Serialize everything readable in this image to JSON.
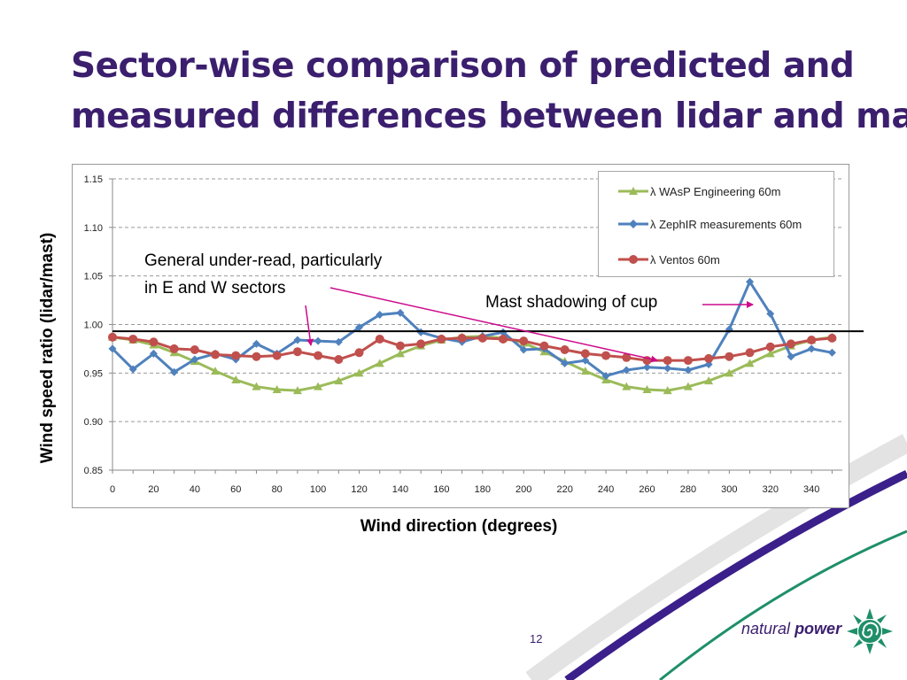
{
  "slide": {
    "title_line1": "Sector-wise comparison of predicted and",
    "title_line2": "measured differences between lidar and mast",
    "page_number": "12"
  },
  "logo": {
    "word1": "natural",
    "word2": "power",
    "icon": "spiral-sun-icon"
  },
  "annotations": {
    "under_read_line1": "General under-read, particularly",
    "under_read_line2": "in E and W sectors",
    "mast_shadowing": "Mast shadowing of cup"
  },
  "colors": {
    "title": "#3b1f6e",
    "wasp": "#9bbb59",
    "zephir": "#4f81bd",
    "ventos": "#c0504d",
    "arrow": "#cc0a8a",
    "reference_line": "#000000"
  },
  "chart_data": {
    "type": "line",
    "xlabel": "Wind direction (degrees)",
    "ylabel": "Wind speed ratio (lidar/mast)",
    "xlim": [
      0,
      355
    ],
    "ylim": [
      0.85,
      1.15
    ],
    "x_ticks": [
      "0",
      "20",
      "40",
      "60",
      "80",
      "100",
      "120",
      "140",
      "160",
      "180",
      "200",
      "220",
      "240",
      "260",
      "280",
      "300",
      "320",
      "340"
    ],
    "y_ticks": [
      "0.85",
      "0.90",
      "0.95",
      "1.00",
      "1.05",
      "1.10",
      "1.15"
    ],
    "grid": "horizontal dashed",
    "legend_position": "top-right",
    "reference_line_y": 0.993,
    "x": [
      0,
      10,
      20,
      30,
      40,
      50,
      60,
      70,
      80,
      90,
      100,
      110,
      120,
      130,
      140,
      150,
      160,
      170,
      180,
      190,
      200,
      210,
      220,
      230,
      240,
      250,
      260,
      270,
      280,
      290,
      300,
      310,
      320,
      330,
      340,
      350
    ],
    "series": [
      {
        "name": "λ WAsP Engineering 60m",
        "color": "#9bbb59",
        "marker": "triangle",
        "values": [
          0.987,
          0.984,
          0.979,
          0.971,
          0.962,
          0.952,
          0.943,
          0.936,
          0.933,
          0.932,
          0.936,
          0.942,
          0.95,
          0.96,
          0.97,
          0.978,
          0.984,
          0.987,
          0.988,
          0.986,
          0.981,
          0.972,
          0.962,
          0.952,
          0.943,
          0.936,
          0.933,
          0.932,
          0.936,
          0.942,
          0.95,
          0.96,
          0.97,
          0.978,
          0.984,
          0.987
        ]
      },
      {
        "name": "λ ZephIR measurements 60m",
        "color": "#4f81bd",
        "marker": "diamond",
        "values": [
          0.975,
          0.954,
          0.97,
          0.951,
          0.964,
          0.97,
          0.964,
          0.98,
          0.97,
          0.984,
          0.983,
          0.982,
          0.997,
          1.01,
          1.012,
          0.992,
          0.986,
          0.982,
          0.988,
          0.992,
          0.974,
          0.975,
          0.96,
          0.963,
          0.947,
          0.953,
          0.956,
          0.955,
          0.953,
          0.959,
          0.995,
          1.044,
          1.011,
          0.967,
          0.975,
          0.971
        ]
      },
      {
        "name": "λ Ventos 60m",
        "color": "#c0504d",
        "marker": "circle",
        "values": [
          0.987,
          0.985,
          0.982,
          0.975,
          0.974,
          0.969,
          0.968,
          0.967,
          0.968,
          0.972,
          0.968,
          0.964,
          0.971,
          0.985,
          0.978,
          0.98,
          0.985,
          0.986,
          0.986,
          0.985,
          0.983,
          0.978,
          0.974,
          0.97,
          0.968,
          0.966,
          0.963,
          0.963,
          0.963,
          0.965,
          0.967,
          0.971,
          0.977,
          0.98,
          0.984,
          0.986
        ]
      }
    ]
  }
}
